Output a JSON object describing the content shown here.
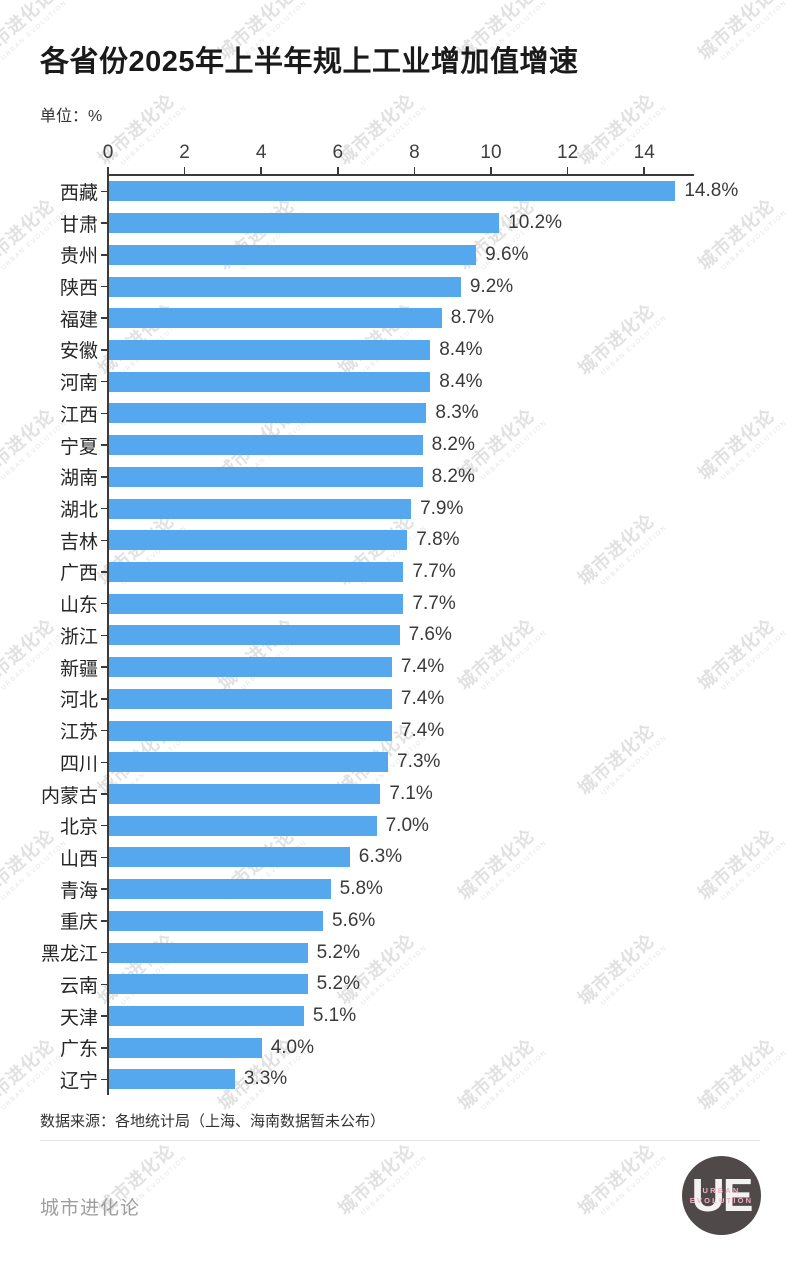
{
  "header": {
    "title": "各省份2025年上半年规上工业增加值增速",
    "subtitle": "单位：%"
  },
  "chart_data": {
    "type": "bar",
    "orientation": "horizontal",
    "title": "各省份2025年上半年规上工业增加值增速",
    "unit": "%",
    "categories": [
      "西藏",
      "甘肃",
      "贵州",
      "陕西",
      "福建",
      "安徽",
      "河南",
      "江西",
      "宁夏",
      "湖南",
      "湖北",
      "吉林",
      "广西",
      "山东",
      "浙江",
      "新疆",
      "河北",
      "江苏",
      "四川",
      "内蒙古",
      "北京",
      "山西",
      "青海",
      "重庆",
      "黑龙江",
      "云南",
      "天津",
      "广东",
      "辽宁"
    ],
    "values": [
      14.8,
      10.2,
      9.6,
      9.2,
      8.7,
      8.4,
      8.4,
      8.3,
      8.2,
      8.2,
      7.9,
      7.8,
      7.7,
      7.7,
      7.6,
      7.4,
      7.4,
      7.4,
      7.3,
      7.1,
      7.0,
      6.3,
      5.8,
      5.6,
      5.2,
      5.2,
      5.1,
      4.0,
      3.3
    ],
    "value_labels": [
      "14.8%",
      "10.2%",
      "9.6%",
      "9.2%",
      "8.7%",
      "8.4%",
      "8.4%",
      "8.3%",
      "8.2%",
      "8.2%",
      "7.9%",
      "7.8%",
      "7.7%",
      "7.7%",
      "7.6%",
      "7.4%",
      "7.4%",
      "7.4%",
      "7.3%",
      "7.1%",
      "7.0%",
      "6.3%",
      "5.8%",
      "5.6%",
      "5.2%",
      "5.2%",
      "5.1%",
      "4.0%",
      "3.3%"
    ],
    "x_ticks": [
      0,
      2,
      4,
      6,
      8,
      10,
      12,
      14
    ],
    "xlim": [
      0,
      15.3
    ],
    "bar_color": "#55a8ee",
    "axis_color": "#3a3a3a",
    "grid": false,
    "legend": "none",
    "xlabel": "",
    "ylabel": ""
  },
  "source_note": "数据来源：各地统计局（上海、海南数据暂未公布）",
  "footer": {
    "brand": "城市进化论",
    "logo": {
      "monogram": "UE",
      "line1": "URBAN",
      "line2": "EVOLUTION"
    }
  },
  "watermark": {
    "line1": "城市进化论",
    "line2": "URBAN EVOLUTION"
  }
}
